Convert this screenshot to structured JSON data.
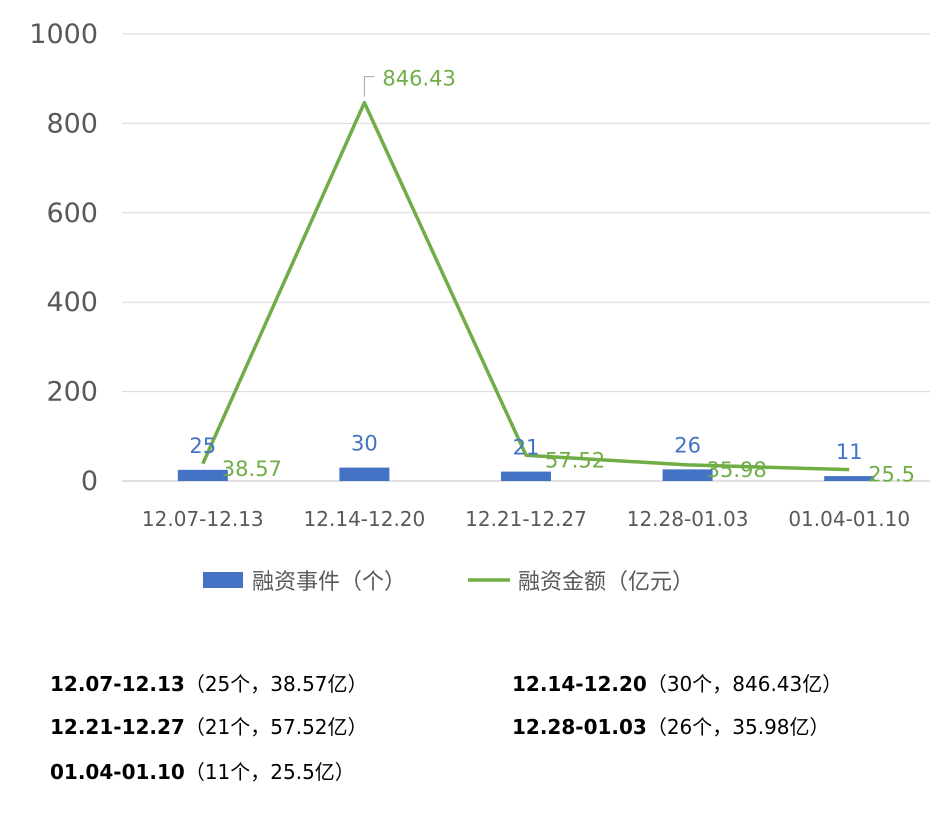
{
  "chart_data": {
    "type": "bar",
    "categories": [
      "12.07-12.13",
      "12.14-12.20",
      "12.21-12.27",
      "12.28-01.03",
      "01.04-01.10"
    ],
    "series": [
      {
        "name": "融资事件（个）",
        "type": "bar",
        "color": "#4472c4",
        "values": [
          25,
          30,
          21,
          26,
          11
        ],
        "labels": [
          "25",
          "30",
          "21",
          "26",
          "11"
        ]
      },
      {
        "name": "融资金额（亿元）",
        "type": "line",
        "color": "#70ad47",
        "values": [
          38.57,
          846.43,
          57.52,
          35.98,
          25.5
        ],
        "labels": [
          "38.57",
          "846.43",
          "57.52",
          "35.98",
          "25.5"
        ]
      }
    ],
    "ylim": [
      0,
      1000
    ],
    "yticks": [
      "0",
      "200",
      "400",
      "600",
      "800",
      "1000"
    ],
    "grid": true,
    "legend_position": "bottom"
  },
  "summary": [
    {
      "period": "12.07-12.13",
      "detail": "（25个，38.57亿）"
    },
    {
      "period": "12.14-12.20",
      "detail": "（30个，846.43亿）"
    },
    {
      "period": "12.21-12.27",
      "detail": "（21个，57.52亿）"
    },
    {
      "period": "12.28-01.03",
      "detail": "（26个，35.98亿）"
    },
    {
      "period": "01.04-01.10",
      "detail": "（11个，25.5亿）"
    }
  ]
}
